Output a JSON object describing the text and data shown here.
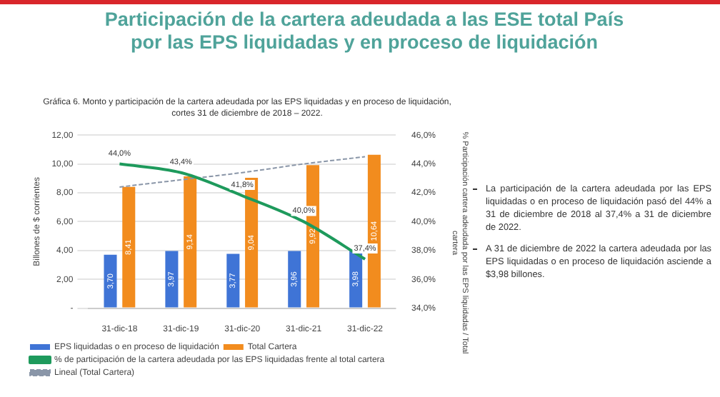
{
  "chart_data": {
    "type": "bar",
    "title": "Participación de la cartera adeudada a las ESE total País por las EPS liquidadas y en proceso de liquidación",
    "subtitle": "Gráfica 6. Monto y participación de la cartera adeudada por las EPS liquidadas y en proceso de liquidación, cortes 31 de diciembre de 2018 – 2022.",
    "ylabel": "Billones de $ corrientes",
    "y2label": "% Participación cartera adeudada por las EPS liquidadas / Total cartera",
    "categories": [
      "31-dic-18",
      "31-dic-19",
      "31-dic-20",
      "31-dic-21",
      "31-dic-22"
    ],
    "series": [
      {
        "name": "EPS liquidadas o en proceso de liquidación",
        "color": "#3f74d6",
        "values": [
          3.7,
          3.97,
          3.77,
          3.96,
          3.98
        ],
        "value_labels": [
          "3,70",
          "3,97",
          "3,77",
          "3,96",
          "3,98"
        ]
      },
      {
        "name": "Total Cartera",
        "color": "#f28c1e",
        "values": [
          8.41,
          9.14,
          9.04,
          9.92,
          10.64
        ],
        "value_labels": [
          "8,41",
          "9,14",
          "9,04",
          "9,92",
          "10,64"
        ]
      },
      {
        "name": "% de participación de la cartera adeudada por las EPS liquidadas frente al total cartera",
        "type": "line",
        "axis": "y2",
        "color": "#1e9a5c",
        "line_style": "solid",
        "values": [
          44.0,
          43.4,
          41.8,
          40.0,
          37.4
        ],
        "value_labels": [
          "44,0%",
          "43,4%",
          "41,8%",
          "40,0%",
          "37,4%"
        ]
      },
      {
        "name": "Lineal (Total Cartera)",
        "type": "line",
        "color": "#8a96a8",
        "line_style": "dashed",
        "values": [
          8.4,
          8.9,
          9.4,
          10.0,
          10.5
        ]
      }
    ],
    "ylim": [
      0,
      12
    ],
    "yticks": [
      {
        "value": 0,
        "label": "-"
      },
      {
        "value": 2,
        "label": "2,00"
      },
      {
        "value": 4,
        "label": "4,00"
      },
      {
        "value": 6,
        "label": "6,00"
      },
      {
        "value": 8,
        "label": "8,00"
      },
      {
        "value": 10,
        "label": "10,00"
      },
      {
        "value": 12,
        "label": "12,00"
      }
    ],
    "y2lim": [
      34,
      46
    ],
    "y2ticks": [
      {
        "value": 34,
        "label": "34,0%"
      },
      {
        "value": 36,
        "label": "36,0%"
      },
      {
        "value": 38,
        "label": "38,0%"
      },
      {
        "value": 40,
        "label": "40,0%"
      },
      {
        "value": 42,
        "label": "42,0%"
      },
      {
        "value": 44,
        "label": "44,0%"
      },
      {
        "value": 46,
        "label": "46,0%"
      }
    ],
    "grid": "y",
    "legend": "bottom",
    "marker": "none",
    "annotations": [
      "La participación de la cartera adeudada por las EPS liquidadas o en proceso de liquidación pasó del 44% a 31 de diciembre de 2018 al 37,4% a 31 de diciembre de 2022.",
      "A 31 de diciembre de 2022 la cartera adeudada por las EPS liquidadas o en proceso de liquidación asciende a $3,98 billones."
    ]
  }
}
